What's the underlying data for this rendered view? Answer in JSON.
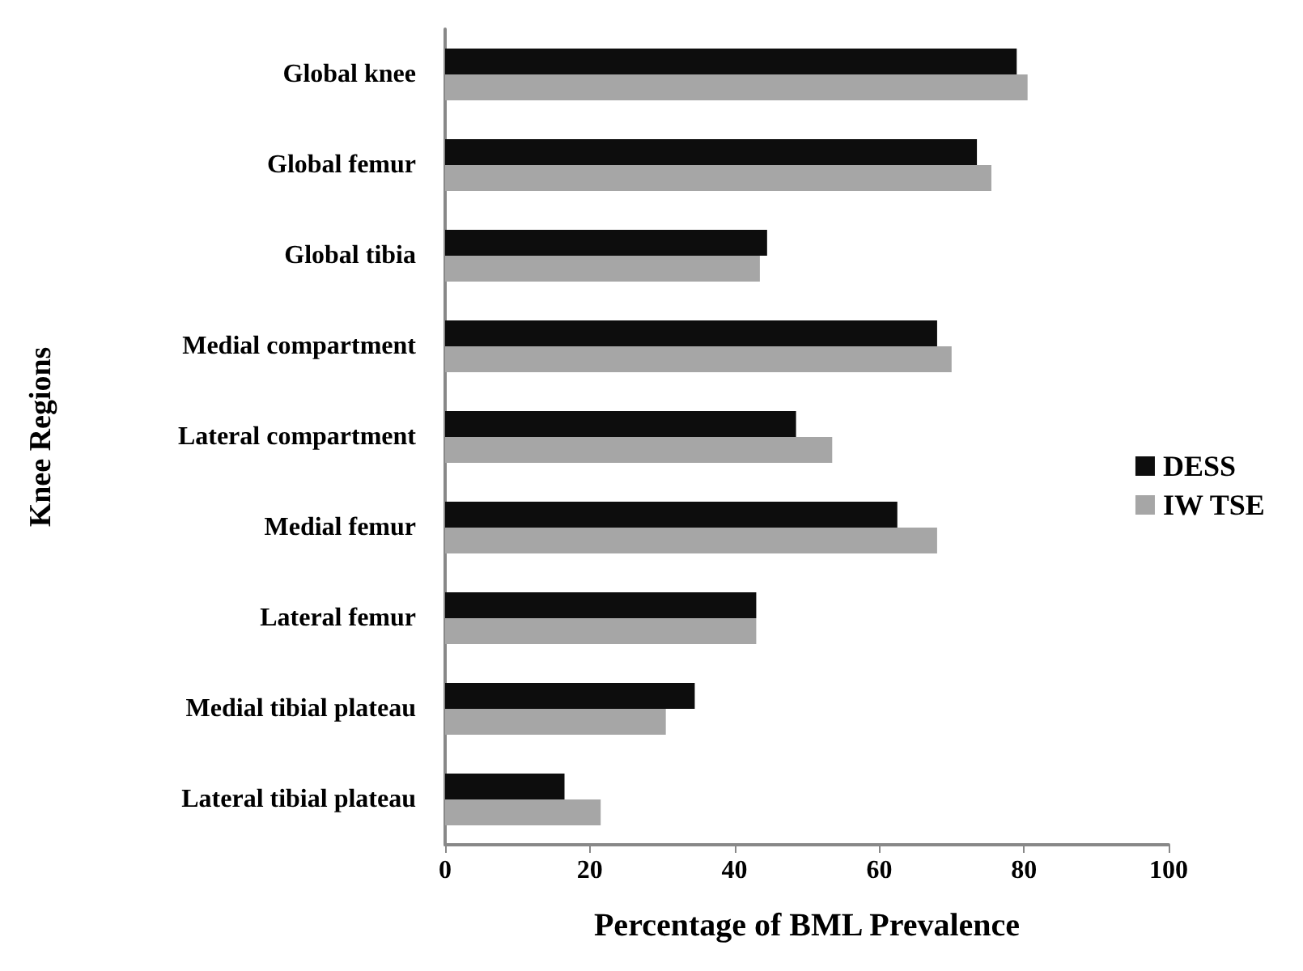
{
  "chart_data": {
    "type": "bar",
    "orientation": "horizontal",
    "xlabel": "Percentage of BML Prevalence",
    "ylabel": "Knee Regions",
    "categories": [
      "Global knee",
      "Global femur",
      "Global tibia",
      "Medial compartment",
      "Lateral compartment",
      "Medial femur",
      "Lateral femur",
      "Medial tibial plateau",
      "Lateral tibial plateau"
    ],
    "series": [
      {
        "name": "DESS",
        "color": "#0d0d0d",
        "values": [
          79,
          73.5,
          44.5,
          68,
          48.5,
          62.5,
          43,
          34.5,
          16.5
        ]
      },
      {
        "name": "IW TSE",
        "color": "#a6a6a6",
        "values": [
          80.5,
          75.5,
          43.5,
          70,
          53.5,
          68,
          43,
          30.5,
          21.5
        ]
      }
    ],
    "xlim": [
      0,
      100
    ],
    "xticks": [
      0,
      20,
      40,
      60,
      80,
      100
    ],
    "grid": false,
    "legend": "right"
  }
}
